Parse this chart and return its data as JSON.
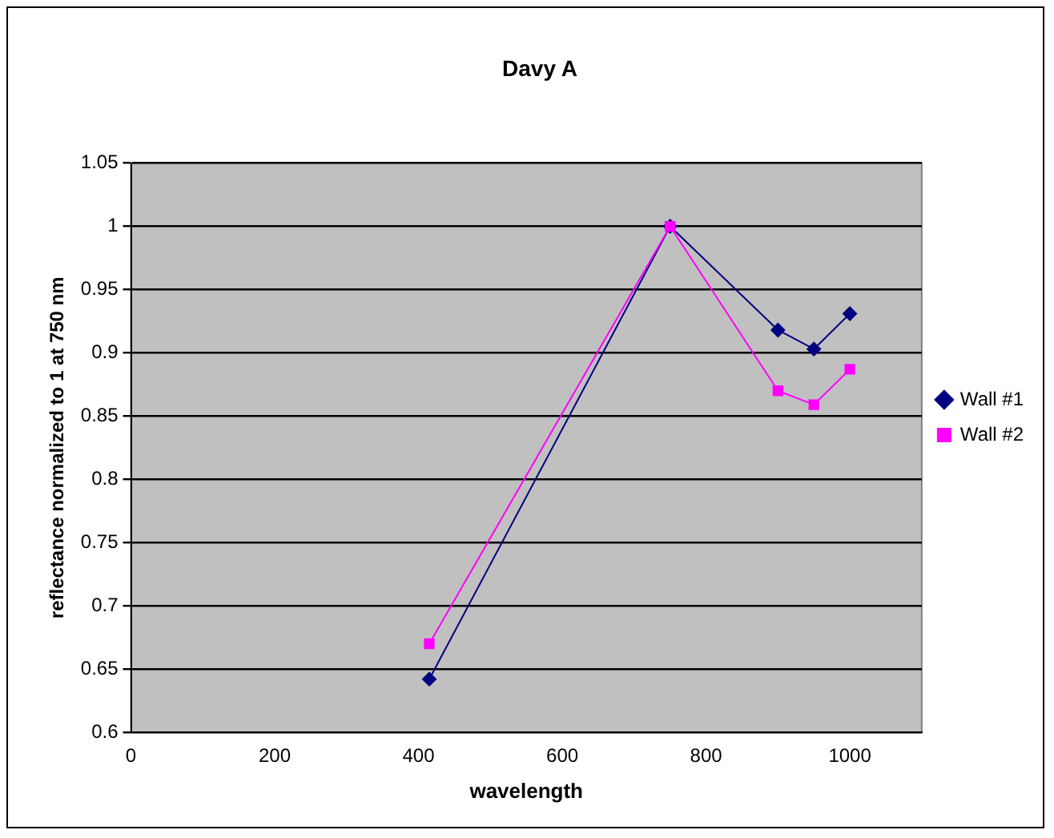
{
  "chart_data": {
    "type": "line",
    "title": "Davy A",
    "xlabel": "wavelength",
    "ylabel": "reflectance normalized to 1 at 750 nm",
    "x": [
      415,
      750,
      900,
      950,
      1000
    ],
    "series": [
      {
        "name": "Wall #1",
        "color": "#000080",
        "marker": "diamond",
        "values": [
          0.642,
          1.0,
          0.918,
          0.903,
          0.931
        ]
      },
      {
        "name": "Wall #2",
        "color": "#ff00ff",
        "marker": "square",
        "values": [
          0.67,
          1.0,
          0.87,
          0.859,
          0.887
        ]
      }
    ],
    "xlim": [
      0,
      1100
    ],
    "xticks": [
      0,
      200,
      400,
      600,
      800,
      1000
    ],
    "ylim": [
      0.6,
      1.05
    ],
    "yticks": [
      0.6,
      0.65,
      0.7,
      0.75,
      0.8,
      0.85,
      0.9,
      0.95,
      1,
      1.05
    ],
    "grid": "y",
    "legend": "right"
  }
}
